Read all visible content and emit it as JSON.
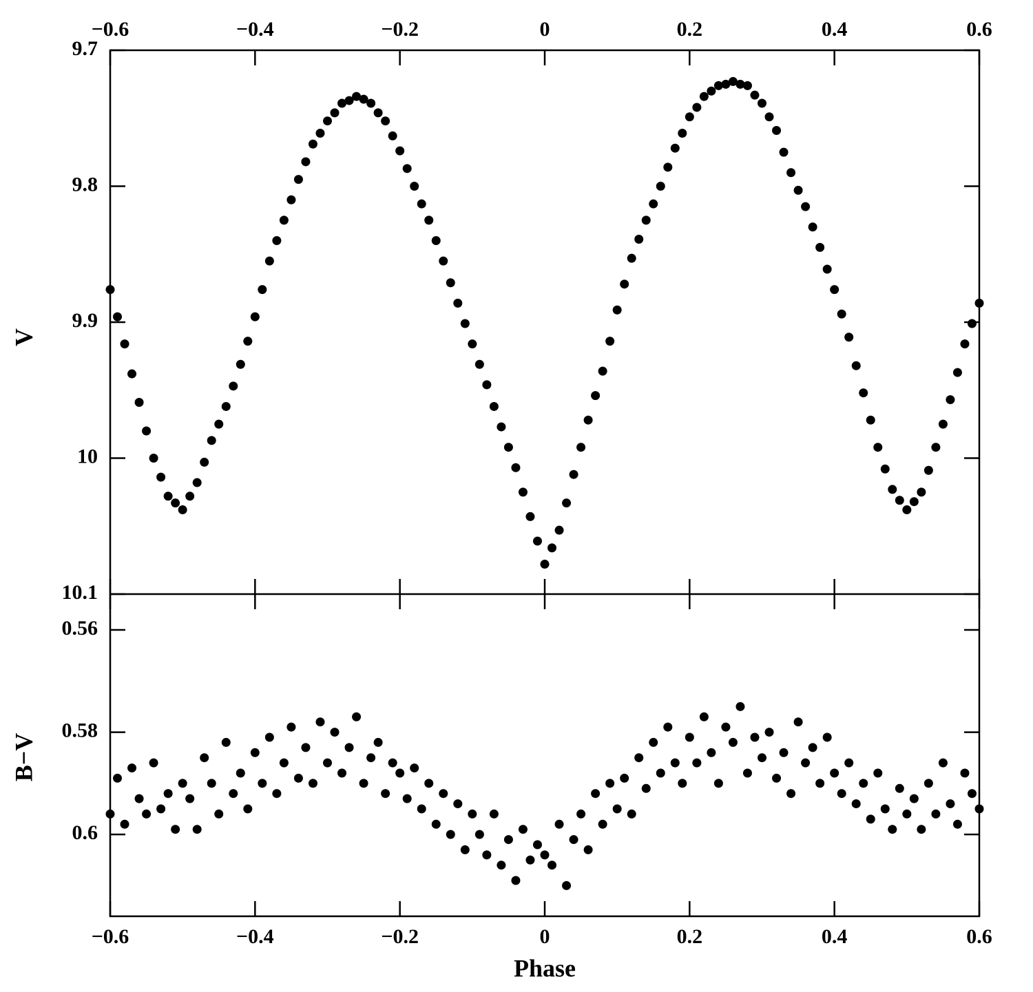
{
  "chart_data": [
    {
      "type": "scatter",
      "y_label": "V",
      "color": "#000000",
      "xtick_side": "top",
      "xlim": [
        -0.6,
        0.6
      ],
      "ylim": [
        10.1,
        9.7
      ],
      "xticks": [
        {
          "value": -0.6,
          "label": "−0.6"
        },
        {
          "value": -0.4,
          "label": "−0.4"
        },
        {
          "value": -0.2,
          "label": "−0.2"
        },
        0,
        0.2,
        0.4,
        0.6
      ],
      "yticks": [
        9.7,
        9.8,
        9.9,
        10,
        10.1
      ],
      "x": [
        -0.6,
        -0.59,
        -0.58,
        -0.57,
        -0.56,
        -0.55,
        -0.54,
        -0.53,
        -0.52,
        -0.51,
        -0.5,
        -0.49,
        -0.48,
        -0.47,
        -0.46,
        -0.45,
        -0.44,
        -0.43,
        -0.42,
        -0.41,
        -0.4,
        -0.39,
        -0.38,
        -0.37,
        -0.36,
        -0.35,
        -0.34,
        -0.33,
        -0.32,
        -0.31,
        -0.3,
        -0.29,
        -0.28,
        -0.27,
        -0.26,
        -0.25,
        -0.24,
        -0.23,
        -0.22,
        -0.21,
        -0.2,
        -0.19,
        -0.18,
        -0.17,
        -0.16,
        -0.15,
        -0.14,
        -0.13,
        -0.12,
        -0.11,
        -0.1,
        -0.09,
        -0.08,
        -0.07,
        -0.06,
        -0.05,
        -0.04,
        -0.03,
        -0.02,
        -0.01,
        0,
        0.01,
        0.02,
        0.03,
        0.04,
        0.05,
        0.06,
        0.07,
        0.08,
        0.09,
        0.1,
        0.11,
        0.12,
        0.13,
        0.14,
        0.15,
        0.16,
        0.17,
        0.18,
        0.19,
        0.2,
        0.21,
        0.22,
        0.23,
        0.24,
        0.25,
        0.26,
        0.27,
        0.28,
        0.29,
        0.3,
        0.31,
        0.32,
        0.33,
        0.34,
        0.35,
        0.36,
        0.37,
        0.38,
        0.39,
        0.4,
        0.41,
        0.42,
        0.43,
        0.44,
        0.45,
        0.46,
        0.47,
        0.48,
        0.49,
        0.5,
        0.51,
        0.52,
        0.53,
        0.54,
        0.55,
        0.56,
        0.57,
        0.58,
        0.59,
        0.6
      ],
      "values": [
        9.876,
        9.896,
        9.916,
        9.938,
        9.959,
        9.98,
        10.0,
        10.014,
        10.028,
        10.033,
        10.038,
        10.028,
        10.018,
        10.003,
        9.987,
        9.975,
        9.962,
        9.947,
        9.931,
        9.914,
        9.896,
        9.876,
        9.855,
        9.84,
        9.825,
        9.81,
        9.795,
        9.782,
        9.769,
        9.761,
        9.752,
        9.746,
        9.739,
        9.737,
        9.734,
        9.736,
        9.739,
        9.746,
        9.752,
        9.763,
        9.774,
        9.787,
        9.8,
        9.813,
        9.825,
        9.84,
        9.855,
        9.871,
        9.886,
        9.901,
        9.916,
        9.931,
        9.946,
        9.962,
        9.977,
        9.992,
        10.007,
        10.025,
        10.043,
        10.061,
        10.078,
        10.066,
        10.053,
        10.033,
        10.012,
        9.992,
        9.972,
        9.954,
        9.936,
        9.914,
        9.891,
        9.872,
        9.853,
        9.839,
        9.825,
        9.813,
        9.8,
        9.786,
        9.772,
        9.761,
        9.749,
        9.742,
        9.734,
        9.73,
        9.726,
        9.725,
        9.723,
        9.725,
        9.726,
        9.733,
        9.739,
        9.749,
        9.759,
        9.775,
        9.79,
        9.803,
        9.815,
        9.83,
        9.845,
        9.861,
        9.876,
        9.894,
        9.911,
        9.932,
        9.952,
        9.972,
        9.992,
        10.008,
        10.023,
        10.031,
        10.038,
        10.032,
        10.025,
        10.009,
        9.992,
        9.975,
        9.957,
        9.937,
        9.916,
        9.901,
        9.886
      ]
    },
    {
      "type": "scatter",
      "y_label": "B−V",
      "x_label": "Phase",
      "color": "#000000",
      "xtick_side": "bottom",
      "xlim": [
        -0.6,
        0.6
      ],
      "ylim": [
        0.616,
        0.553
      ],
      "xticks": [
        {
          "value": -0.6,
          "label": "−0.6"
        },
        {
          "value": -0.4,
          "label": "−0.4"
        },
        {
          "value": -0.2,
          "label": "−0.2"
        },
        0,
        0.2,
        0.4,
        0.6
      ],
      "yticks": [
        0.56,
        0.58,
        0.6
      ],
      "x": [
        -0.6,
        -0.59,
        -0.58,
        -0.57,
        -0.56,
        -0.55,
        -0.54,
        -0.53,
        -0.52,
        -0.51,
        -0.5,
        -0.49,
        -0.48,
        -0.47,
        -0.46,
        -0.45,
        -0.44,
        -0.43,
        -0.42,
        -0.41,
        -0.4,
        -0.39,
        -0.38,
        -0.37,
        -0.36,
        -0.35,
        -0.34,
        -0.33,
        -0.32,
        -0.31,
        -0.3,
        -0.29,
        -0.28,
        -0.27,
        -0.26,
        -0.25,
        -0.24,
        -0.23,
        -0.22,
        -0.21,
        -0.2,
        -0.19,
        -0.18,
        -0.17,
        -0.16,
        -0.15,
        -0.14,
        -0.13,
        -0.12,
        -0.11,
        -0.1,
        -0.09,
        -0.08,
        -0.07,
        -0.06,
        -0.05,
        -0.04,
        -0.03,
        -0.02,
        -0.01,
        0,
        0.01,
        0.02,
        0.03,
        0.04,
        0.05,
        0.06,
        0.07,
        0.08,
        0.09,
        0.1,
        0.11,
        0.12,
        0.13,
        0.14,
        0.15,
        0.16,
        0.17,
        0.18,
        0.19,
        0.2,
        0.21,
        0.22,
        0.23,
        0.24,
        0.25,
        0.26,
        0.27,
        0.28,
        0.29,
        0.3,
        0.31,
        0.32,
        0.33,
        0.34,
        0.35,
        0.36,
        0.37,
        0.38,
        0.39,
        0.4,
        0.41,
        0.42,
        0.43,
        0.44,
        0.45,
        0.46,
        0.47,
        0.48,
        0.49,
        0.5,
        0.51,
        0.52,
        0.53,
        0.54,
        0.55,
        0.56,
        0.57,
        0.58,
        0.59,
        0.6
      ],
      "values": [
        0.596,
        0.589,
        0.598,
        0.587,
        0.593,
        0.596,
        0.586,
        0.595,
        0.592,
        0.599,
        0.59,
        0.593,
        0.599,
        0.585,
        0.59,
        0.596,
        0.582,
        0.592,
        0.588,
        0.595,
        0.584,
        0.59,
        0.581,
        0.592,
        0.586,
        0.579,
        0.589,
        0.583,
        0.59,
        0.578,
        0.586,
        0.58,
        0.588,
        0.583,
        0.577,
        0.59,
        0.585,
        0.582,
        0.592,
        0.586,
        0.588,
        0.593,
        0.587,
        0.595,
        0.59,
        0.598,
        0.592,
        0.6,
        0.594,
        0.603,
        0.596,
        0.6,
        0.604,
        0.596,
        0.606,
        0.601,
        0.609,
        0.599,
        0.605,
        0.602,
        0.604,
        0.606,
        0.598,
        0.61,
        0.601,
        0.596,
        0.603,
        0.592,
        0.598,
        0.59,
        0.595,
        0.589,
        0.596,
        0.585,
        0.591,
        0.582,
        0.588,
        0.579,
        0.586,
        0.59,
        0.581,
        0.586,
        0.577,
        0.584,
        0.59,
        0.579,
        0.582,
        0.575,
        0.588,
        0.581,
        0.585,
        0.58,
        0.589,
        0.584,
        0.592,
        0.578,
        0.586,
        0.583,
        0.59,
        0.581,
        0.588,
        0.592,
        0.586,
        0.594,
        0.59,
        0.597,
        0.588,
        0.595,
        0.599,
        0.591,
        0.596,
        0.593,
        0.599,
        0.59,
        0.596,
        0.586,
        0.594,
        0.598,
        0.588,
        0.592,
        0.595
      ]
    }
  ]
}
